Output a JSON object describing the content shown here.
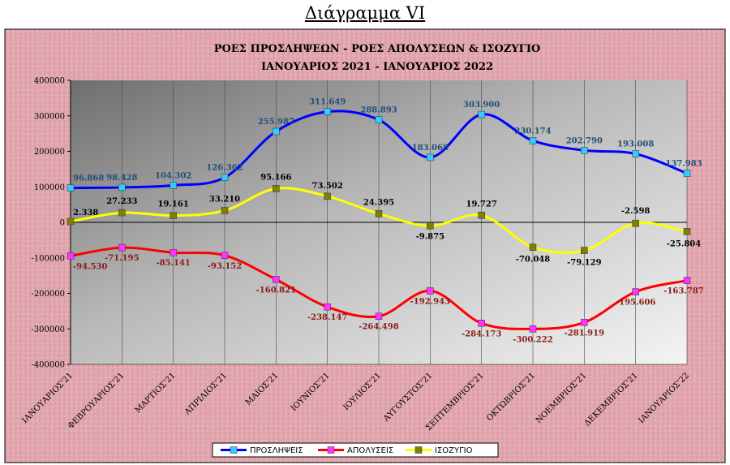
{
  "page_title": "Διάγραμμα VI",
  "chart_data": {
    "type": "line",
    "title": "ΡΟΕΣ ΠΡΟΣΛΗΨΕΩΝ -  ΡΟΕΣ ΑΠΟΛΥΣΕΩΝ  & ΙΣΟΖΥΓΙΟ",
    "subtitle": "ΙΑΝΟΥΑΡΙΟΣ 2021  -  ΙΑΝΟΥΑΡΙΟΣ  2022",
    "xlabel": "",
    "ylabel": "",
    "ylim": [
      -400000,
      400000
    ],
    "yticks": [
      400000,
      300000,
      200000,
      100000,
      0,
      -100000,
      -200000,
      -300000,
      -400000
    ],
    "ytick_labels": [
      "400000",
      "300000",
      "200000",
      "100000",
      "0",
      "-100000",
      "-200000",
      "-300000",
      "-400000"
    ],
    "grid": "vertical",
    "legend_position": "bottom",
    "categories": [
      "ΙΑΝΟΥΑΡΙΟΣ'21",
      "ΦΕΒΡΟΥΑΡΙΟΣ'21",
      "ΜΑΡΤΙΟΣ'21",
      "ΑΠΡΙΛΙΟΣ'21",
      "ΜΑΙΟΣ'21",
      "ΙΟΥΝΙΟΣ'21",
      "ΙΟΥΛΙΟΣ'21",
      "ΑΥΓΟΥΣΤΟΣ'21",
      "ΣΕΠΤΕΜΒΡΙΟΣ'21",
      "ΟΚΤΩΒΡΙΟΣ'21",
      "ΝΟΕΜΒΡΙΟΣ'21",
      "ΔΕΚΕΜΒΡΙΟΣ'21",
      "ΙΑΝΟΥΑΡΙΟΣ'22"
    ],
    "series": [
      {
        "name": "ΠΡΟΣΛΗΨΕΙΣ",
        "color": "#0000ff",
        "marker_color": "#33ccff",
        "label_color": "#1f4e79",
        "values": [
          96868,
          98428,
          104302,
          126362,
          255987,
          311649,
          288893,
          183068,
          303900,
          230174,
          202790,
          193008,
          137983
        ],
        "labels": [
          "96.868",
          "98.428",
          "104.302",
          "126.362",
          "255.987",
          "311.649",
          "288.893",
          "183.068",
          "303.900",
          "230.174",
          "202.790",
          "193.008",
          "137.983"
        ]
      },
      {
        "name": "ΑΠΟΛΥΣΕΙΣ",
        "color": "#ff0000",
        "marker_color": "#ff33ff",
        "label_color": "#8b1a1a",
        "values": [
          -94530,
          -71195,
          -85141,
          -93152,
          -160821,
          -238147,
          -264498,
          -192943,
          -284173,
          -300222,
          -281919,
          -195606,
          -163787
        ],
        "labels": [
          "-94.530",
          "-71.195",
          "-85.141",
          "-93.152",
          "-160.821",
          "-238.147",
          "-264.498",
          "-192.943",
          "-284.173",
          "-300.222",
          "-281.919",
          "-195.606",
          "-163.787"
        ]
      },
      {
        "name": "ΙΣΟΖΥΓΙΟ",
        "color": "#ffff00",
        "marker_color": "#808000",
        "label_color": "#000000",
        "values": [
          2338,
          27233,
          19161,
          33210,
          95166,
          73502,
          24395,
          -9875,
          19727,
          -70048,
          -79129,
          -2598,
          -25804
        ],
        "labels": [
          "2.338",
          "27.233",
          "19.161",
          "33.210",
          "95.166",
          "73.502",
          "24.395",
          "-9.875",
          "19.727",
          "-70.048",
          "-79.129",
          "-2.598",
          "-25.804"
        ]
      }
    ]
  }
}
